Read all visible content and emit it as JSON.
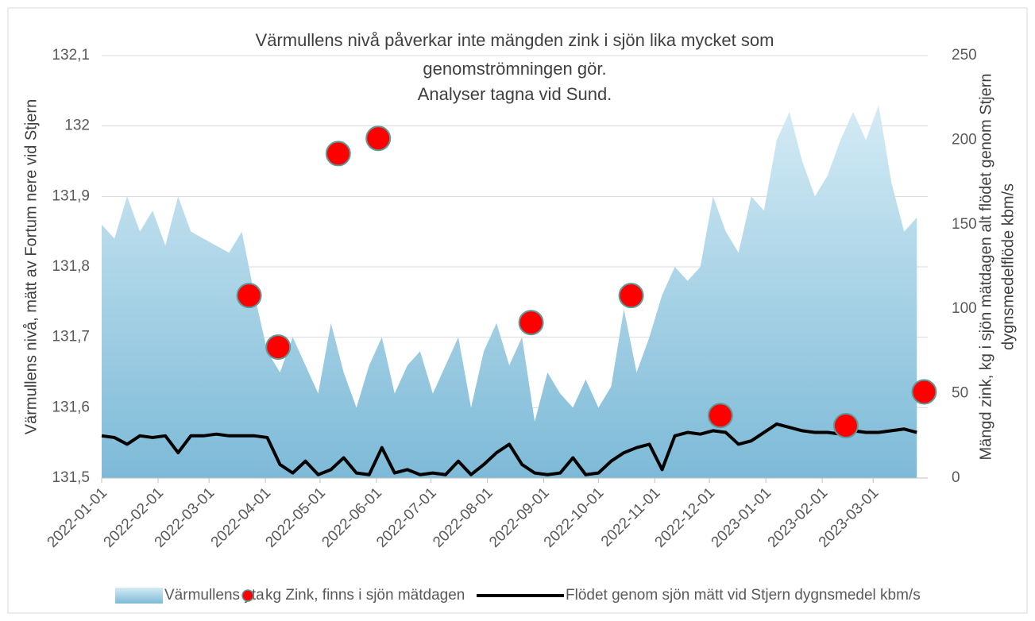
{
  "chart_data": {
    "type": "combo",
    "title": [
      "Värmullens nivå påverkar inte mängden zink i sjön lika mycket som",
      "genomströmningen gör.",
      "Analyser tagna vid Sund."
    ],
    "y_label": "Värmullens nivå, mätt av Fortum nere vid Stjern",
    "y2_label": [
      "Mängd zink, kg  i sjön mätdagen alt flödet genom Stjern",
      "dygnsmedelflöde kbm/s"
    ],
    "x": [
      "2022-01-01",
      "2022-01-08",
      "2022-01-15",
      "2022-01-22",
      "2022-01-29",
      "2022-02-05",
      "2022-02-12",
      "2022-02-19",
      "2022-02-26",
      "2022-03-05",
      "2022-03-12",
      "2022-03-19",
      "2022-03-26",
      "2022-04-02",
      "2022-04-09",
      "2022-04-16",
      "2022-04-23",
      "2022-04-30",
      "2022-05-07",
      "2022-05-14",
      "2022-05-21",
      "2022-05-28",
      "2022-06-04",
      "2022-06-11",
      "2022-06-18",
      "2022-06-25",
      "2022-07-02",
      "2022-07-09",
      "2022-07-16",
      "2022-07-23",
      "2022-07-30",
      "2022-08-06",
      "2022-08-13",
      "2022-08-20",
      "2022-08-27",
      "2022-09-03",
      "2022-09-10",
      "2022-09-17",
      "2022-09-24",
      "2022-10-01",
      "2022-10-08",
      "2022-10-15",
      "2022-10-22",
      "2022-10-29",
      "2022-11-05",
      "2022-11-12",
      "2022-11-19",
      "2022-11-26",
      "2022-12-03",
      "2022-12-10",
      "2022-12-17",
      "2022-12-24",
      "2022-12-31",
      "2023-01-07",
      "2023-01-14",
      "2023-01-21",
      "2023-01-28",
      "2023-02-04",
      "2023-02-11",
      "2023-02-18",
      "2023-02-25",
      "2023-03-04",
      "2023-03-11",
      "2023-03-18",
      "2023-03-25"
    ],
    "series": [
      {
        "name": "Värmullens yta",
        "type": "area",
        "color": "#9ccbe2",
        "axis": "y",
        "values": [
          131.86,
          131.84,
          131.9,
          131.85,
          131.88,
          131.83,
          131.9,
          131.85,
          131.84,
          131.83,
          131.82,
          131.85,
          131.76,
          131.68,
          131.65,
          131.7,
          131.66,
          131.62,
          131.72,
          131.65,
          131.6,
          131.66,
          131.7,
          131.62,
          131.66,
          131.68,
          131.62,
          131.66,
          131.7,
          131.6,
          131.68,
          131.72,
          131.66,
          131.7,
          131.58,
          131.65,
          131.62,
          131.6,
          131.64,
          131.6,
          131.63,
          131.74,
          131.65,
          131.7,
          131.76,
          131.8,
          131.78,
          131.8,
          131.9,
          131.85,
          131.82,
          131.9,
          131.88,
          131.98,
          132.02,
          131.95,
          131.9,
          131.93,
          131.98,
          132.02,
          131.98,
          132.03,
          131.92,
          131.85,
          131.87
        ]
      },
      {
        "name": "kg Zink, finns i sjön mätdagen",
        "type": "scatter",
        "color": "#ff0000",
        "axis": "y2",
        "x": [
          "2022-03-23",
          "2022-04-08",
          "2022-05-11",
          "2022-06-02",
          "2022-08-25",
          "2022-10-19",
          "2022-12-07",
          "2023-02-14",
          "2023-03-29"
        ],
        "values": [
          108,
          77.5,
          192,
          201,
          92,
          108,
          37,
          31,
          51
        ]
      },
      {
        "name": "Flödet genom sjön mätt vid Stjern dygnsmedel kbm/s",
        "type": "line",
        "color": "#000000",
        "axis": "y2",
        "values": [
          25,
          24,
          20,
          25,
          24,
          25,
          15,
          25,
          25,
          26,
          25,
          25,
          25,
          24,
          8,
          3,
          10,
          2,
          5,
          12,
          3,
          2,
          18,
          3,
          5,
          2,
          3,
          2,
          10,
          2,
          8,
          15,
          20,
          8,
          3,
          2,
          3,
          12,
          2,
          3,
          10,
          15,
          18,
          20,
          5,
          25,
          27,
          26,
          28,
          27,
          20,
          22,
          27,
          32,
          30,
          28,
          27,
          27,
          26,
          28,
          27,
          27,
          28,
          29,
          27
        ]
      }
    ],
    "xlim": [
      "2022-01-01",
      "2023-03-31"
    ],
    "xticks": [
      "2022-01-01",
      "2022-02-01",
      "2022-03-01",
      "2022-04-01",
      "2022-05-01",
      "2022-06-01",
      "2022-07-01",
      "2022-08-01",
      "2022-09-01",
      "2022-10-01",
      "2022-11-01",
      "2022-12-01",
      "2023-01-01",
      "2023-02-01",
      "2023-03-01"
    ],
    "ylim": [
      131.5,
      132.1
    ],
    "yticks": [
      {
        "value": 131.5,
        "label": "131,5"
      },
      {
        "value": 131.6,
        "label": "131,6"
      },
      {
        "value": 131.7,
        "label": "131,7"
      },
      {
        "value": 131.8,
        "label": "131,8"
      },
      {
        "value": 131.9,
        "label": "131,9"
      },
      132,
      {
        "value": 132.1,
        "label": "132,1"
      }
    ],
    "y2lim": [
      0,
      250
    ],
    "y2ticks": [
      0,
      50,
      100,
      150,
      200,
      250
    ],
    "grid": true,
    "legend": "bottom"
  }
}
